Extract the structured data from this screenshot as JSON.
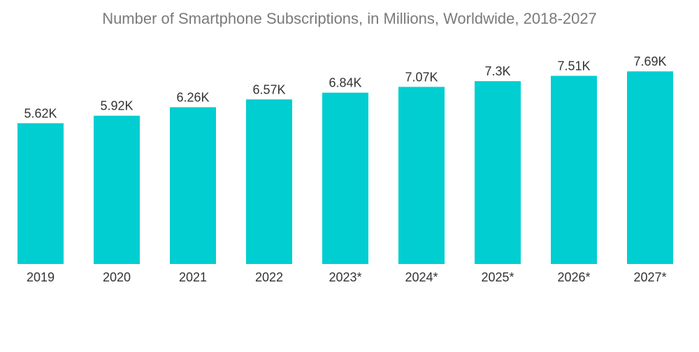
{
  "chart_data": {
    "type": "bar",
    "title": "Number of Smartphone Subscriptions, in Millions, Worldwide, 2018-2027",
    "xlabel": "",
    "ylabel": "",
    "categories": [
      "2019",
      "2020",
      "2021",
      "2022",
      "2023*",
      "2024*",
      "2025*",
      "2026*",
      "2027*"
    ],
    "values": [
      5.62,
      5.92,
      6.26,
      6.57,
      6.84,
      7.07,
      7.3,
      7.51,
      7.69
    ],
    "value_labels": [
      "5.62K",
      "5.92K",
      "6.26K",
      "6.57K",
      "6.84K",
      "7.07K",
      "7.3K",
      "7.51K",
      "7.69K"
    ],
    "ylim": [
      0,
      9.2
    ],
    "grid": false,
    "legend": "none",
    "bar_color": "#00CED1"
  }
}
